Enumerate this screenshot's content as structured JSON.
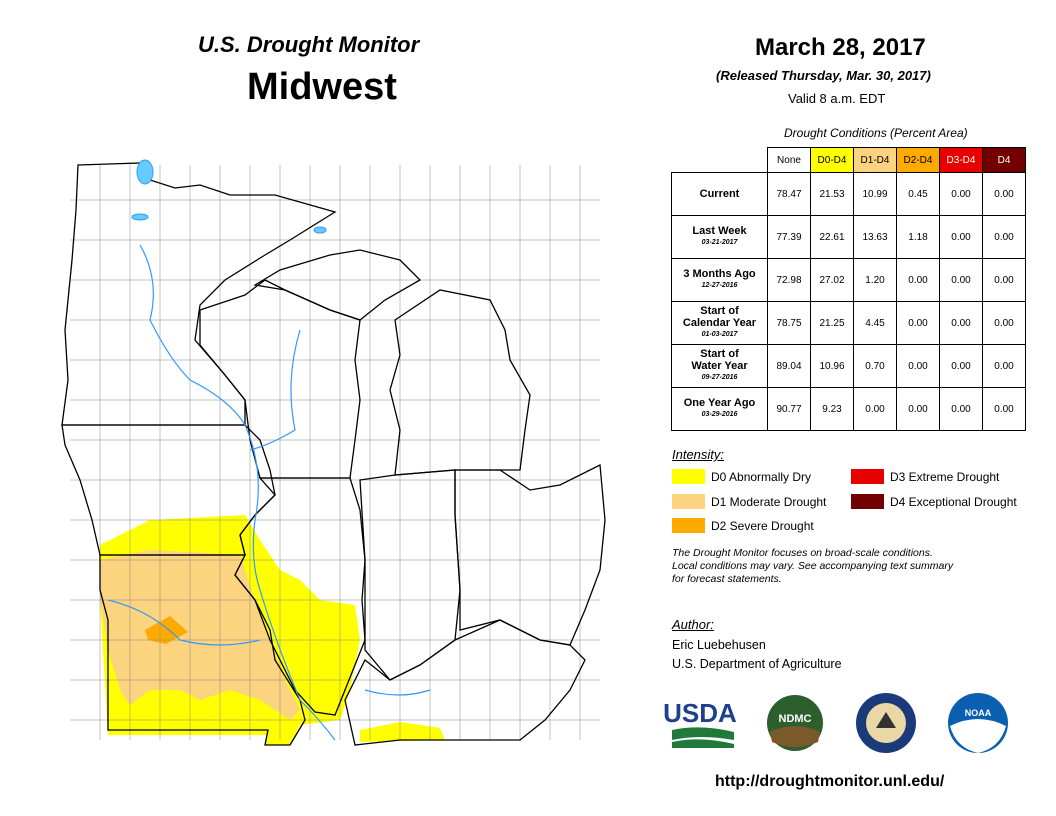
{
  "header": {
    "title": "U.S. Drought Monitor",
    "region": "Midwest",
    "date": "March 28, 2017",
    "released": "(Released Thursday, Mar. 30, 2017)",
    "valid": "Valid 8 a.m. EDT"
  },
  "table": {
    "caption": "Drought Conditions (Percent Area)",
    "columns": [
      {
        "label": "None",
        "color": "#ffffff",
        "text": "#000000"
      },
      {
        "label": "D0-D4",
        "color": "#ffff00",
        "text": "#000000"
      },
      {
        "label": "D1-D4",
        "color": "#fcd37f",
        "text": "#000000"
      },
      {
        "label": "D2-D4",
        "color": "#ffaa00",
        "text": "#000000"
      },
      {
        "label": "D3-D4",
        "color": "#e60000",
        "text": "#ffffff"
      },
      {
        "label": "D4",
        "color": "#730000",
        "text": "#ffffff"
      }
    ],
    "rows": [
      {
        "label": [
          "Current"
        ],
        "cells": [
          "78.47",
          "21.53",
          "10.99",
          "0.45",
          "0.00",
          "0.00"
        ]
      },
      {
        "label": [
          "Last Week"
        ],
        "date": "03-21-2017",
        "cells": [
          "77.39",
          "22.61",
          "13.63",
          "1.18",
          "0.00",
          "0.00"
        ]
      },
      {
        "label": [
          "3 Months Ago"
        ],
        "date": "12-27-2016",
        "cells": [
          "72.98",
          "27.02",
          "1.20",
          "0.00",
          "0.00",
          "0.00"
        ]
      },
      {
        "label": [
          "Start of",
          "Calendar Year"
        ],
        "date": "01-03-2017",
        "cells": [
          "78.75",
          "21.25",
          "4.45",
          "0.00",
          "0.00",
          "0.00"
        ]
      },
      {
        "label": [
          "Start of",
          "Water Year"
        ],
        "date": "09-27-2016",
        "cells": [
          "89.04",
          "10.96",
          "0.70",
          "0.00",
          "0.00",
          "0.00"
        ]
      },
      {
        "label": [
          "One Year Ago"
        ],
        "date": "03-29-2016",
        "cells": [
          "90.77",
          "9.23",
          "0.00",
          "0.00",
          "0.00",
          "0.00"
        ]
      }
    ]
  },
  "legend": {
    "title": "Intensity:",
    "items": [
      {
        "label": "D0 Abnormally Dry",
        "color": "#ffff00"
      },
      {
        "label": "D1 Moderate Drought",
        "color": "#fcd37f"
      },
      {
        "label": "D2 Severe Drought",
        "color": "#ffaa00"
      },
      {
        "label": "D3 Extreme Drought",
        "color": "#e60000"
      },
      {
        "label": "D4 Exceptional Drought",
        "color": "#730000"
      }
    ]
  },
  "note": [
    "The Drought Monitor focuses on broad-scale conditions.",
    "Local conditions may vary. See accompanying text summary",
    "for forecast statements."
  ],
  "author": {
    "title": "Author:",
    "name": "Eric Luebehusen",
    "org": "U.S. Department of Agriculture"
  },
  "logos": [
    "USDA",
    "NDMC",
    "NOAA"
  ],
  "url": "http://droughtmonitor.unl.edu/"
}
